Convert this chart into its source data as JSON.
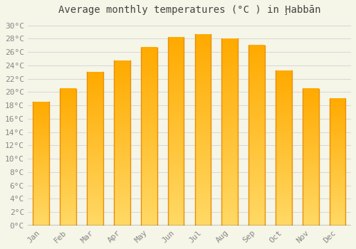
{
  "title": "Average monthly temperatures (°C ) in Ḩabbān",
  "months": [
    "Jan",
    "Feb",
    "Mar",
    "Apr",
    "May",
    "Jun",
    "Jul",
    "Aug",
    "Sep",
    "Oct",
    "Nov",
    "Dec"
  ],
  "values": [
    18.5,
    20.5,
    23.0,
    24.7,
    26.7,
    28.2,
    28.7,
    28.0,
    27.0,
    23.2,
    20.5,
    19.0
  ],
  "bar_color_main": "#FFAA00",
  "bar_color_light": "#FFD966",
  "bar_color_edge": "#E8900A",
  "background_color": "#F5F5E8",
  "grid_color": "#D8D8D8",
  "ytick_min": 0,
  "ytick_max": 30,
  "ytick_step": 2,
  "title_fontsize": 10,
  "tick_fontsize": 8,
  "tick_color": "#888888"
}
